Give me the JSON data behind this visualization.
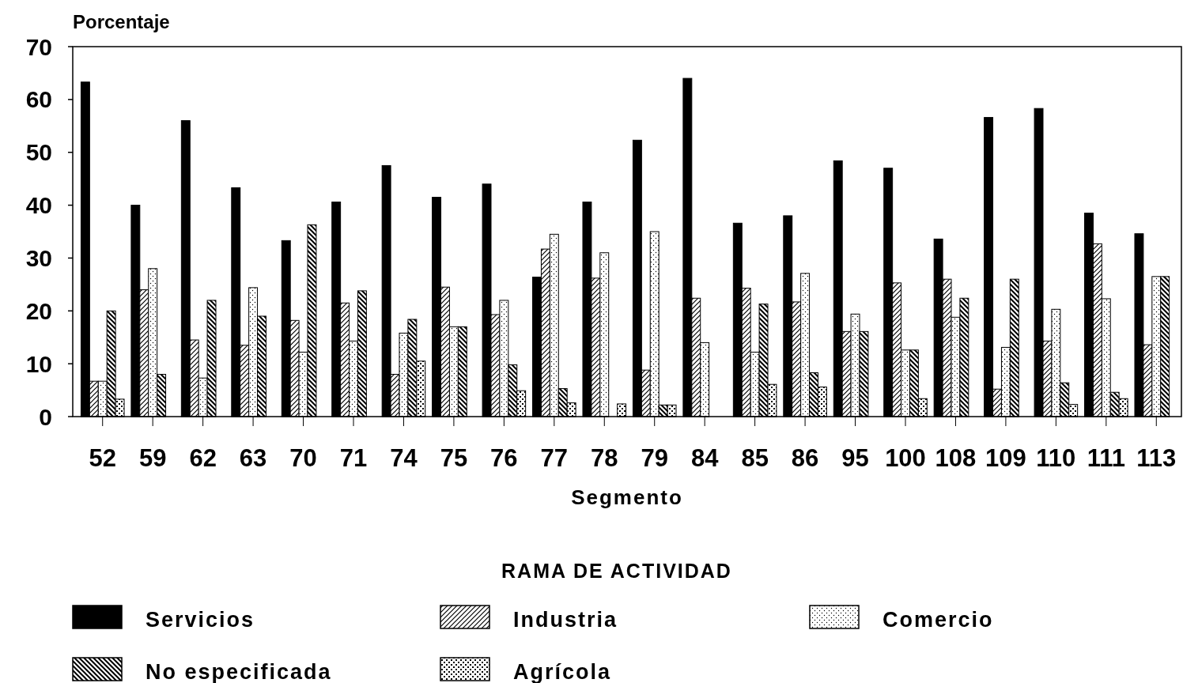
{
  "chart_data": {
    "type": "bar",
    "ylabel": "Porcentaje",
    "xlabel": "Segmento",
    "legend_title": "RAMA DE ACTIVIDAD",
    "legend": "bottom",
    "grid": false,
    "categories": [
      "52",
      "59",
      "62",
      "63",
      "70",
      "71",
      "74",
      "75",
      "76",
      "77",
      "78",
      "79",
      "84",
      "85",
      "86",
      "95",
      "100",
      "108",
      "109",
      "110",
      "111",
      "113"
    ],
    "ylim": [
      0,
      70
    ],
    "yticks": [
      0,
      10,
      20,
      30,
      40,
      50,
      60,
      70
    ],
    "series": [
      {
        "name": "Servicios",
        "color": "#000000",
        "values": [
          63.3,
          40,
          56,
          43.3,
          33.3,
          40.6,
          47.5,
          41.5,
          44,
          26.4,
          40.6,
          52.3,
          64,
          36.6,
          38,
          48.4,
          47,
          33.6,
          56.6,
          58.3,
          38.5,
          34.6
        ]
      },
      {
        "name": "Industria",
        "color": "#000000",
        "values": [
          6.7,
          24,
          14.5,
          13.5,
          18.2,
          21.5,
          8,
          24.5,
          19.3,
          31.7,
          26.2,
          8.8,
          22.4,
          24.3,
          21.7,
          16.1,
          25.3,
          26,
          5.2,
          14.3,
          32.7,
          13.6
        ]
      },
      {
        "name": "Comercio",
        "color": "#000000",
        "values": [
          6.7,
          28,
          7.3,
          24.4,
          12.2,
          14.3,
          15.8,
          17,
          22,
          34.5,
          31,
          35,
          14,
          12.2,
          27.1,
          19.4,
          12.6,
          18.8,
          13.1,
          20.3,
          22.3,
          26.5
        ]
      },
      {
        "name": "No especificada",
        "color": "#000000",
        "values": [
          20,
          8,
          22,
          19,
          36.3,
          23.8,
          18.4,
          17,
          9.8,
          5.3,
          0,
          2.2,
          0,
          21.3,
          8.3,
          16.1,
          12.6,
          22.4,
          26,
          6.4,
          4.6,
          26.5
        ]
      },
      {
        "name": "Agrícola",
        "color": "#000000",
        "values": [
          3.3,
          0,
          0,
          0,
          0,
          0,
          10.5,
          0,
          4.9,
          2.6,
          2.4,
          2.2,
          0,
          6.1,
          5.6,
          0,
          3.4,
          0,
          0,
          2.3,
          3.4,
          0
        ]
      }
    ]
  }
}
